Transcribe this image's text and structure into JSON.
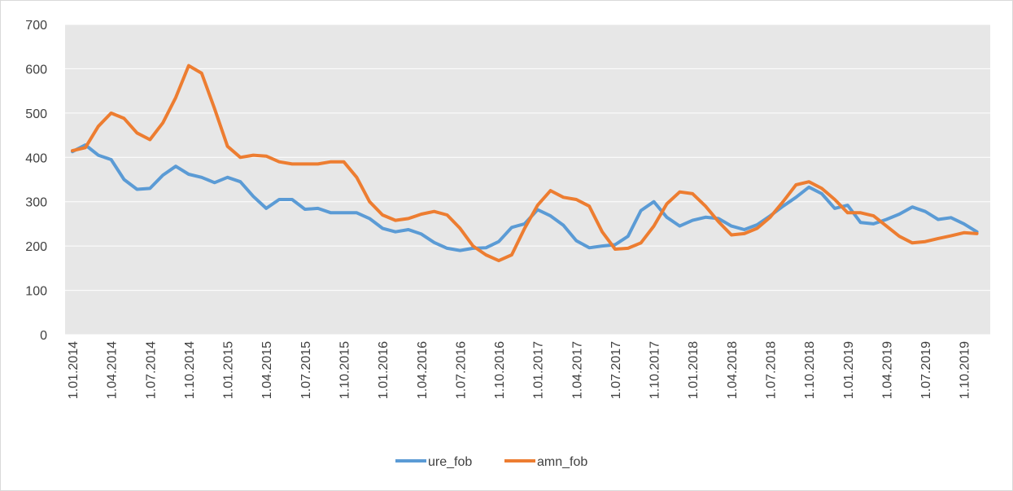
{
  "chart_data": {
    "type": "line",
    "categories": [
      "1.01.2014",
      null,
      null,
      "1.04.2014",
      null,
      null,
      "1.07.2014",
      null,
      null,
      "1.10.2014",
      null,
      null,
      "1.01.2015",
      null,
      null,
      "1.04.2015",
      null,
      null,
      "1.07.2015",
      null,
      null,
      "1.10.2015",
      null,
      null,
      "1.01.2016",
      null,
      null,
      "1.04.2016",
      null,
      null,
      "1.07.2016",
      null,
      null,
      "1.10.2016",
      null,
      null,
      "1.01.2017",
      null,
      null,
      "1.04.2017",
      null,
      null,
      "1.07.2017",
      null,
      null,
      "1.10.2017",
      null,
      null,
      "1.01.2018",
      null,
      null,
      "1.04.2018",
      null,
      null,
      "1.07.2018",
      null,
      null,
      "1.10.2018",
      null,
      null,
      "1.01.2019",
      null,
      null,
      "1.04.2019",
      null,
      null,
      "1.07.2019",
      null,
      null,
      "1.10.2019",
      null
    ],
    "series": [
      {
        "name": "ure_fob",
        "color": "#5b9bd5",
        "values": [
          413,
          428,
          405,
          395,
          350,
          328,
          330,
          360,
          380,
          362,
          355,
          343,
          355,
          345,
          312,
          285,
          305,
          305,
          283,
          285,
          275,
          275,
          275,
          262,
          240,
          232,
          237,
          227,
          208,
          195,
          190,
          195,
          196,
          210,
          242,
          250,
          282,
          268,
          247,
          212,
          196,
          200,
          203,
          222,
          280,
          300,
          265,
          245,
          258,
          265,
          262,
          245,
          237,
          248,
          268,
          290,
          310,
          333,
          318,
          285,
          292,
          253,
          250,
          260,
          272,
          288,
          278,
          260,
          264,
          250,
          232
        ]
      },
      {
        "name": "amn_fob",
        "color": "#ed7d31",
        "values": [
          415,
          422,
          470,
          500,
          488,
          455,
          440,
          478,
          535,
          607,
          590,
          510,
          425,
          400,
          405,
          403,
          390,
          385,
          385,
          385,
          390,
          390,
          355,
          300,
          270,
          258,
          262,
          272,
          278,
          270,
          240,
          200,
          180,
          167,
          180,
          240,
          292,
          325,
          310,
          305,
          290,
          232,
          193,
          195,
          207,
          245,
          295,
          322,
          318,
          290,
          255,
          225,
          228,
          240,
          265,
          300,
          338,
          345,
          330,
          305,
          275,
          275,
          268,
          245,
          222,
          207,
          210,
          217,
          223,
          230,
          228
        ]
      }
    ],
    "ylim": [
      0,
      700
    ],
    "yticks": [
      0,
      100,
      200,
      300,
      400,
      500,
      600,
      700
    ],
    "grid": true,
    "legend": "bottom"
  }
}
